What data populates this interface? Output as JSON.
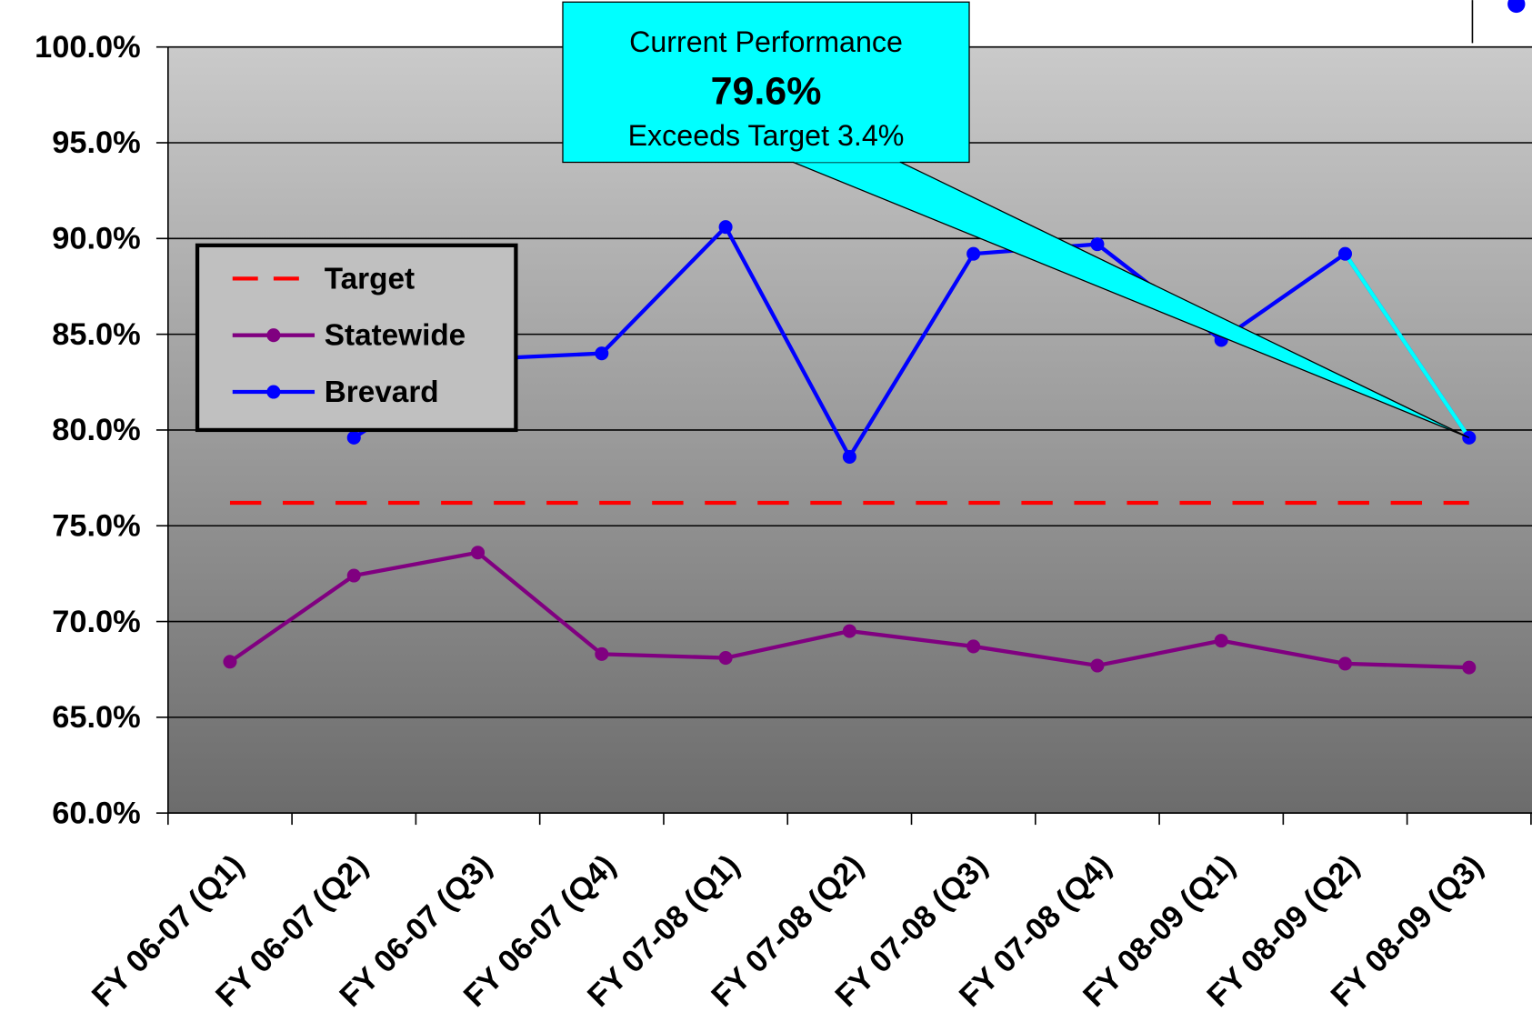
{
  "chart_data": {
    "type": "line",
    "categories": [
      "FY 06-07 (Q1)",
      "FY 06-07 (Q2)",
      "FY 06-07 (Q3)",
      "FY 06-07 (Q4)",
      "FY 07-08 (Q1)",
      "FY 07-08 (Q2)",
      "FY 07-08 (Q3)",
      "FY 07-08 (Q4)",
      "FY 08-09 (Q1)",
      "FY 08-09 (Q2)",
      "FY 08-09 (Q3)"
    ],
    "series": [
      {
        "name": "Target",
        "color": "#ff0000",
        "dashed": true,
        "markers": false,
        "values": [
          76.2,
          76.2,
          76.2,
          76.2,
          76.2,
          76.2,
          76.2,
          76.2,
          76.2,
          76.2,
          76.2
        ]
      },
      {
        "name": "Statewide",
        "color": "#800080",
        "dashed": false,
        "markers": true,
        "values": [
          67.9,
          72.4,
          73.6,
          68.3,
          68.1,
          69.5,
          68.7,
          67.7,
          69.0,
          67.8,
          67.6
        ]
      },
      {
        "name": "Brevard",
        "color": "#0000ff",
        "dashed": false,
        "markers": true,
        "last_segment_color": "#00ffff",
        "values": [
          null,
          79.6,
          83.7,
          84.0,
          90.6,
          78.6,
          89.2,
          89.7,
          84.7,
          89.2,
          79.6
        ]
      }
    ],
    "ylim": [
      60,
      100
    ],
    "yticks": [
      {
        "value": 60,
        "label": "60.0%"
      },
      {
        "value": 65,
        "label": "65.0%"
      },
      {
        "value": 70,
        "label": "70.0%"
      },
      {
        "value": 75,
        "label": "75.0%"
      },
      {
        "value": 80,
        "label": "80.0%"
      },
      {
        "value": 85,
        "label": "85.0%"
      },
      {
        "value": 90,
        "label": "90.0%"
      },
      {
        "value": 95,
        "label": "95.0%"
      },
      {
        "value": 100,
        "label": "100.0%"
      }
    ],
    "grid": true,
    "legend": "upper left",
    "annotation": {
      "lines": [
        "Current Performance",
        "79.6%",
        "Exceeds Target  3.4%"
      ],
      "color": "#00ffff"
    }
  }
}
